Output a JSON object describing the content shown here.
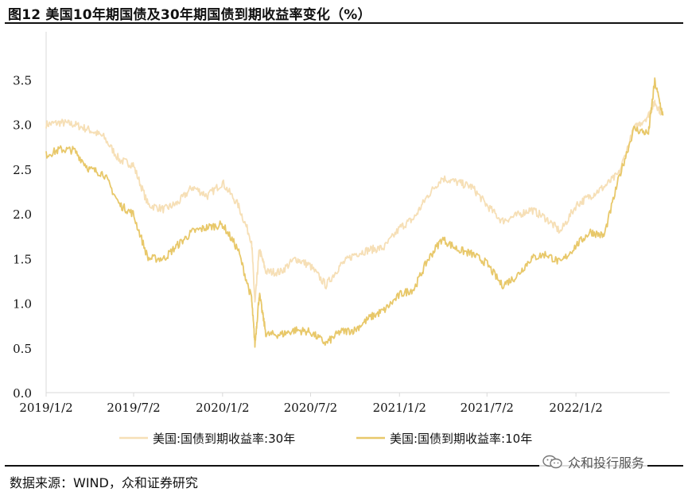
{
  "title": "图12 美国10年期国债及30年期国债到期收益率变化（%）",
  "source": "数据来源：WIND，众和证券研究",
  "watermark": {
    "text": "众和投行服务",
    "icon": "wechat-icon"
  },
  "chart_data": {
    "type": "line",
    "xlabel": "",
    "ylabel": "",
    "ylim": [
      0.0,
      4.0
    ],
    "yticks": [
      "0.0",
      "0.5",
      "1.0",
      "1.5",
      "2.0",
      "2.5",
      "3.0",
      "3.5"
    ],
    "xticks": [
      "2019/1/2",
      "2019/7/2",
      "2020/1/2",
      "2020/7/2",
      "2021/1/2",
      "2021/7/2",
      "2022/1/2"
    ],
    "grid": false,
    "legend_position": "bottom",
    "x": [
      "2019/1/2",
      "2019/2/1",
      "2019/3/1",
      "2019/4/1",
      "2019/5/1",
      "2019/6/3",
      "2019/7/1",
      "2019/8/1",
      "2019/9/3",
      "2019/10/1",
      "2019/11/1",
      "2019/12/2",
      "2020/1/2",
      "2020/2/3",
      "2020/3/2",
      "2020/3/9",
      "2020/3/18",
      "2020/4/1",
      "2020/5/1",
      "2020/6/1",
      "2020/7/1",
      "2020/8/3",
      "2020/9/1",
      "2020/10/1",
      "2020/11/2",
      "2020/12/1",
      "2021/1/4",
      "2021/2/1",
      "2021/3/1",
      "2021/3/31",
      "2021/5/3",
      "2021/6/1",
      "2021/7/1",
      "2021/8/2",
      "2021/9/1",
      "2021/10/1",
      "2021/11/1",
      "2021/12/1",
      "2022/1/3",
      "2022/2/1",
      "2022/3/1",
      "2022/4/1",
      "2022/5/2",
      "2022/6/1",
      "2022/6/14",
      "2022/7/1"
    ],
    "series": [
      {
        "name": "美国:国债到期收益率:30年",
        "color": "#f6dfb6",
        "values": [
          3.0,
          3.02,
          3.0,
          2.94,
          2.86,
          2.6,
          2.55,
          2.1,
          2.05,
          2.12,
          2.3,
          2.2,
          2.35,
          2.1,
          1.7,
          1.0,
          1.6,
          1.35,
          1.35,
          1.5,
          1.42,
          1.2,
          1.42,
          1.55,
          1.6,
          1.62,
          1.85,
          1.95,
          2.2,
          2.4,
          2.35,
          2.3,
          2.1,
          1.92,
          1.98,
          2.05,
          1.95,
          1.8,
          2.1,
          2.2,
          2.3,
          2.45,
          2.95,
          3.1,
          3.25,
          3.1
        ]
      },
      {
        "name": "美国:国债到期收益率:10年",
        "color": "#e8c86a",
        "values": [
          2.66,
          2.72,
          2.71,
          2.5,
          2.45,
          2.1,
          2.0,
          1.5,
          1.5,
          1.65,
          1.8,
          1.85,
          1.88,
          1.6,
          1.05,
          0.54,
          1.1,
          0.65,
          0.65,
          0.7,
          0.68,
          0.55,
          0.68,
          0.7,
          0.84,
          0.92,
          1.1,
          1.16,
          1.48,
          1.72,
          1.6,
          1.55,
          1.45,
          1.2,
          1.3,
          1.5,
          1.55,
          1.45,
          1.65,
          1.8,
          1.75,
          2.4,
          2.95,
          2.9,
          3.48,
          3.1
        ]
      }
    ]
  }
}
